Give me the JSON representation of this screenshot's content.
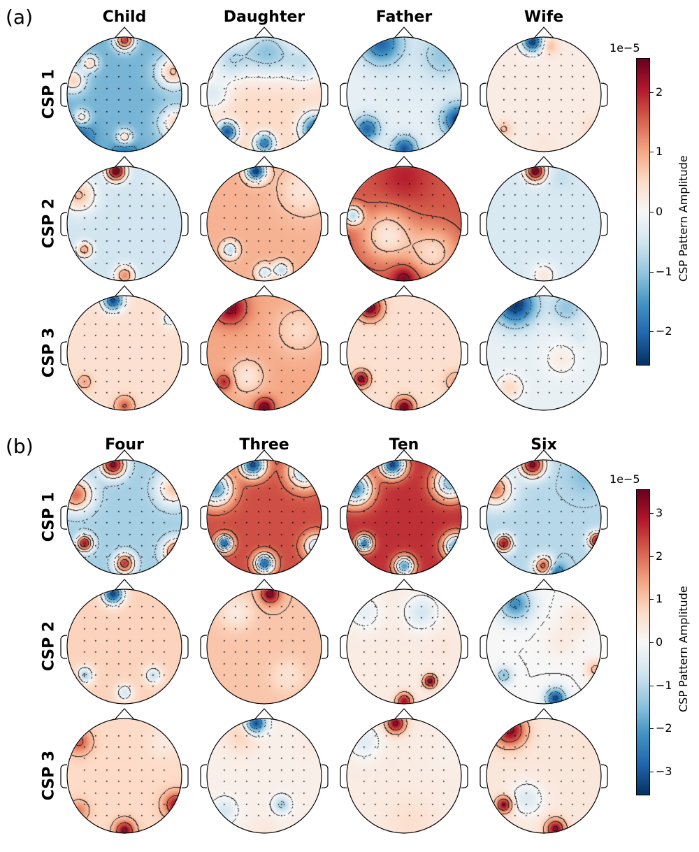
{
  "chart_data": [
    {
      "type": "heatmap",
      "subtype": "eeg-topomap-grid",
      "panel_label": "(a)",
      "columns": [
        "Child",
        "Daughter",
        "Father",
        "Wife"
      ],
      "rows": [
        "CSP 1",
        "CSP 2",
        "CSP 3"
      ],
      "colormap": "RdBu_r",
      "colorbar": {
        "label": "CSP Pattern Amplitude",
        "exponent": "1e−5",
        "range": [
          -2.57,
          2.57
        ],
        "ticks": [
          -2,
          -1,
          0,
          1,
          2
        ],
        "tick_labels": [
          "−2",
          "−1",
          "0",
          "1",
          "2"
        ]
      },
      "maps_note_units": "scalp x/y in [-1,1] (y toward nose), amplitude in 1e-5",
      "maps": [
        [
          {
            "base": -1.2,
            "peaks": [
              [
                0,
                0.95,
                1.8,
                0.12
              ],
              [
                0.85,
                0.4,
                0.8,
                0.2
              ],
              [
                -0.9,
                0.25,
                0.6,
                0.15
              ],
              [
                -0.6,
                0.55,
                0.5,
                0.1
              ],
              [
                0.9,
                -0.5,
                0.6,
                0.2
              ],
              [
                0,
                -0.75,
                0.6,
                0.1
              ],
              [
                -0.85,
                -0.75,
                -2.2,
                0.2
              ],
              [
                0,
                -0.98,
                -2,
                0.15
              ],
              [
                -0.75,
                -0.4,
                0.4,
                0.1
              ]
            ]
          },
          {
            "base": 0.5,
            "peaks": [
              [
                0.05,
                0.75,
                -1.0,
                0.3
              ],
              [
                -0.6,
                0.6,
                -0.6,
                0.25
              ],
              [
                0.7,
                0.55,
                -0.5,
                0.25
              ],
              [
                -0.65,
                -0.65,
                -2.2,
                0.12
              ],
              [
                0,
                -0.85,
                -1.8,
                0.12
              ],
              [
                0.9,
                -0.6,
                -2.2,
                0.18
              ],
              [
                -0.9,
                0,
                -0.3,
                0.2
              ]
            ]
          },
          {
            "base": -0.2,
            "peaks": [
              [
                -0.4,
                0.9,
                -2,
                0.25
              ],
              [
                0.7,
                0.7,
                -1,
                0.3
              ],
              [
                -0.65,
                -0.6,
                -2,
                0.15
              ],
              [
                0,
                -0.95,
                -2.2,
                0.15
              ],
              [
                0.95,
                -0.45,
                -2.4,
                0.2
              ],
              [
                0,
                0.2,
                -0.3,
                0.5
              ]
            ]
          },
          {
            "base": 0.2,
            "peaks": [
              [
                -0.2,
                0.92,
                -2.4,
                0.12
              ],
              [
                0.1,
                0.85,
                0.8,
                0.1
              ],
              [
                -0.7,
                -0.6,
                0.8,
                0.1
              ],
              [
                0.9,
                -0.6,
                0.6,
                0.15
              ],
              [
                0,
                -0.9,
                0.3,
                0.2
              ]
            ]
          }
        ],
        [
          {
            "base": -0.5,
            "peaks": [
              [
                -0.15,
                0.92,
                2.5,
                0.12
              ],
              [
                -0.8,
                0.5,
                0.8,
                0.2
              ],
              [
                -0.7,
                -0.45,
                1.0,
                0.1
              ],
              [
                0,
                -0.9,
                1.2,
                0.12
              ],
              [
                0.6,
                0.8,
                -0.3,
                0.2
              ]
            ]
          },
          {
            "base": 0.9,
            "peaks": [
              [
                -0.15,
                0.92,
                -2.4,
                0.12
              ],
              [
                -0.6,
                -0.45,
                -0.6,
                0.1
              ],
              [
                0.3,
                -0.8,
                -0.6,
                0.1
              ],
              [
                0,
                -0.85,
                -0.4,
                0.1
              ],
              [
                0.7,
                0.6,
                0.3,
                0.3
              ]
            ]
          },
          {
            "base": 1.6,
            "peaks": [
              [
                -0.9,
                0.15,
                -0.6,
                0.12
              ],
              [
                0,
                -0.95,
                2.5,
                0.15
              ],
              [
                0,
                0.8,
                2,
                0.3
              ],
              [
                0.5,
                -0.5,
                0.5,
                0.3
              ],
              [
                -0.3,
                -0.2,
                0.3,
                0.3
              ]
            ]
          },
          {
            "base": -0.4,
            "peaks": [
              [
                -0.15,
                0.92,
                2.5,
                0.12
              ],
              [
                0.3,
                0.8,
                -0.6,
                0.15
              ],
              [
                0,
                -0.9,
                0.3,
                0.15
              ]
            ]
          }
        ],
        [
          {
            "base": 0.4,
            "peaks": [
              [
                -0.2,
                0.92,
                -2.3,
                0.12
              ],
              [
                -0.7,
                -0.5,
                1.0,
                0.1
              ],
              [
                0,
                -0.92,
                1.5,
                0.12
              ],
              [
                0.8,
                0.6,
                -0.3,
                0.1
              ],
              [
                0.9,
                -0.6,
                0.5,
                0.15
              ]
            ]
          },
          {
            "base": 1.0,
            "peaks": [
              [
                -0.6,
                0.8,
                2.4,
                0.2
              ],
              [
                -0.7,
                -0.5,
                2.0,
                0.1
              ],
              [
                0,
                -0.95,
                2.5,
                0.12
              ],
              [
                0.6,
                0.4,
                0.5,
                0.3
              ],
              [
                -0.3,
                -0.4,
                0.3,
                0.2
              ]
            ]
          },
          {
            "base": 0.4,
            "peaks": [
              [
                -0.6,
                0.8,
                2.5,
                0.15
              ],
              [
                -0.75,
                -0.45,
                2.4,
                0.1
              ],
              [
                0,
                -0.95,
                2.5,
                0.12
              ],
              [
                0.9,
                -0.5,
                1.0,
                0.15
              ]
            ]
          },
          {
            "base": -0.2,
            "peaks": [
              [
                -0.5,
                0.85,
                -2.5,
                0.25
              ],
              [
                0.4,
                0.8,
                -1.0,
                0.2
              ],
              [
                0.6,
                0.3,
                -0.4,
                0.1
              ],
              [
                -0.6,
                -0.6,
                0.5,
                0.15
              ],
              [
                0.3,
                -0.1,
                0.2,
                0.2
              ]
            ]
          }
        ]
      ]
    },
    {
      "type": "heatmap",
      "subtype": "eeg-topomap-grid",
      "panel_label": "(b)",
      "columns": [
        "Four",
        "Three",
        "Ten",
        "Six"
      ],
      "rows": [
        "CSP 1",
        "CSP 2",
        "CSP 3"
      ],
      "colormap": "RdBu_r",
      "colorbar": {
        "label": "CSP Pattern Amplitude",
        "exponent": "1e−5",
        "range": [
          -3.55,
          3.55
        ],
        "ticks": [
          -3,
          -2,
          -1,
          0,
          1,
          2,
          3
        ],
        "tick_labels": [
          "−3",
          "−2",
          "−1",
          "0",
          "1",
          "2",
          "3"
        ]
      },
      "maps": [
        [
          {
            "base": -1.2,
            "peaks": [
              [
                -0.2,
                0.92,
                3.2,
                0.15
              ],
              [
                -0.85,
                0.4,
                2.0,
                0.2
              ],
              [
                0.85,
                0.5,
                1.0,
                0.2
              ],
              [
                -0.7,
                -0.45,
                3.0,
                0.1
              ],
              [
                0,
                -0.8,
                2.5,
                0.12
              ],
              [
                0.9,
                -0.6,
                2.5,
                0.15
              ],
              [
                0,
                -0.98,
                -1,
                0.1
              ]
            ]
          },
          {
            "base": 2.3,
            "peaks": [
              [
                -0.2,
                0.92,
                -3.2,
                0.15
              ],
              [
                -0.85,
                0.5,
                -2,
                0.2
              ],
              [
                0.7,
                0.8,
                -1.2,
                0.2
              ],
              [
                -0.7,
                -0.45,
                -2.8,
                0.1
              ],
              [
                0,
                -0.8,
                -2.8,
                0.12
              ],
              [
                0.9,
                -0.5,
                -0.8,
                0.15
              ]
            ]
          },
          {
            "base": 2.6,
            "peaks": [
              [
                -0.2,
                0.92,
                -3.2,
                0.15
              ],
              [
                -0.85,
                0.5,
                -2.2,
                0.2
              ],
              [
                0.8,
                0.6,
                -1.5,
                0.2
              ],
              [
                -0.7,
                -0.45,
                -2.5,
                0.1
              ],
              [
                0,
                -0.85,
                -2.0,
                0.12
              ],
              [
                0.9,
                -0.5,
                -2.0,
                0.15
              ]
            ]
          },
          {
            "base": -1.0,
            "peaks": [
              [
                -0.2,
                0.92,
                3.2,
                0.15
              ],
              [
                -0.85,
                0.5,
                1.8,
                0.2
              ],
              [
                -0.7,
                -0.45,
                3,
                0.1
              ],
              [
                0,
                -0.85,
                2.5,
                0.12
              ],
              [
                0.92,
                -0.4,
                3,
                0.1
              ],
              [
                0.2,
                -0.95,
                -3,
                0.12
              ],
              [
                0.7,
                0.7,
                -1.5,
                0.2
              ]
            ]
          }
        ],
        [
          {
            "base": 0.8,
            "peaks": [
              [
                -0.2,
                0.92,
                -3.2,
                0.12
              ],
              [
                -0.7,
                -0.5,
                -1.2,
                0.1
              ],
              [
                0.5,
                -0.5,
                -0.8,
                0.1
              ],
              [
                0,
                -0.8,
                -0.6,
                0.1
              ],
              [
                -0.9,
                -0.6,
                2,
                0.1
              ]
            ]
          },
          {
            "base": 1.0,
            "peaks": [
              [
                0.1,
                0.92,
                3.3,
                0.12
              ],
              [
                -0.5,
                0.6,
                0.3,
                0.2
              ],
              [
                0.4,
                -0.5,
                0.5,
                0.2
              ]
            ]
          },
          {
            "base": 0.3,
            "peaks": [
              [
                0.3,
                0.6,
                -0.6,
                0.2
              ],
              [
                -0.7,
                0.6,
                -0.3,
                0.2
              ],
              [
                0.45,
                -0.6,
                3.3,
                0.08
              ],
              [
                0,
                -0.95,
                3,
                0.1
              ],
              [
                0.7,
                0,
                0.4,
                0.2
              ]
            ]
          },
          {
            "base": 0.0,
            "peaks": [
              [
                -0.5,
                0.75,
                -2.2,
                0.2
              ],
              [
                0.6,
                0.5,
                0.4,
                0.2
              ],
              [
                -0.7,
                -0.5,
                -1.5,
                0.1
              ],
              [
                0.2,
                -0.9,
                -3.2,
                0.12
              ],
              [
                0.9,
                -0.4,
                1.2,
                0.12
              ],
              [
                0.3,
                0.1,
                0.3,
                0.2
              ]
            ]
          }
        ],
        [
          {
            "base": 0.7,
            "peaks": [
              [
                -0.8,
                0.6,
                2.2,
                0.15
              ],
              [
                0.9,
                -0.5,
                3.0,
                0.15
              ],
              [
                -0.8,
                -0.6,
                1.8,
                0.12
              ],
              [
                0,
                -0.95,
                3.2,
                0.12
              ],
              [
                0.7,
                0.6,
                0.3,
                0.2
              ]
            ]
          },
          {
            "base": 0.2,
            "peaks": [
              [
                -0.15,
                0.92,
                -3.2,
                0.12
              ],
              [
                -0.4,
                0.7,
                0.8,
                0.2
              ],
              [
                0.8,
                0.5,
                0.3,
                0.2
              ],
              [
                0.3,
                -0.5,
                -1.2,
                0.1
              ],
              [
                -0.7,
                -0.6,
                -0.6,
                0.15
              ],
              [
                0,
                -0.92,
                0.4,
                0.15
              ]
            ]
          },
          {
            "base": 0.3,
            "peaks": [
              [
                -0.15,
                0.92,
                3.2,
                0.12
              ],
              [
                -0.7,
                0.6,
                -0.4,
                0.2
              ],
              [
                0.1,
                -0.8,
                0.6,
                0.3
              ],
              [
                0.8,
                0.4,
                0.2,
                0.3
              ]
            ]
          },
          {
            "base": 0.4,
            "peaks": [
              [
                -0.6,
                0.8,
                3.2,
                0.2
              ],
              [
                -0.7,
                -0.5,
                3.2,
                0.1
              ],
              [
                0.2,
                -0.92,
                3.2,
                0.12
              ],
              [
                0.8,
                0.5,
                0.5,
                0.2
              ],
              [
                -0.3,
                -0.4,
                -0.5,
                0.2
              ]
            ]
          }
        ]
      ]
    }
  ]
}
